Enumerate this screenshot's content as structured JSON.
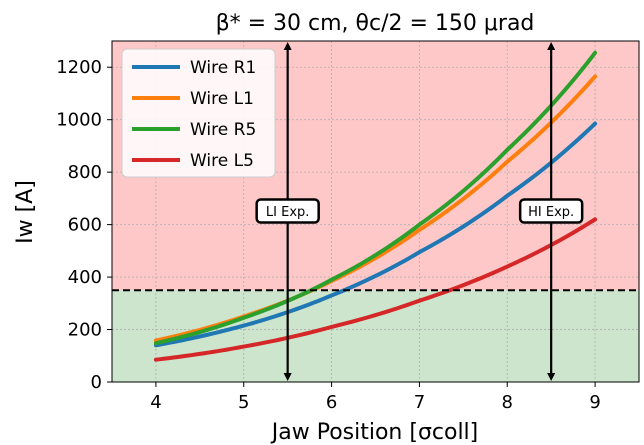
{
  "chart_data": {
    "type": "line",
    "title": "β* = 30 cm, θc/2 = 150 μrad",
    "xlabel": "Jaw Position [σcoll]",
    "ylabel": "Iw [A]",
    "xlim": [
      3.5,
      9.5
    ],
    "ylim": [
      0,
      1300
    ],
    "x_ticks": [
      4,
      5,
      6,
      7,
      8,
      9
    ],
    "y_ticks": [
      0,
      200,
      400,
      600,
      800,
      1000,
      1200
    ],
    "grid": true,
    "legend_position": "top-left",
    "x": [
      4,
      5,
      6,
      7,
      8,
      9
    ],
    "series": [
      {
        "name": "Wire R1",
        "color": "#1f77b4",
        "values": [
          140,
          215,
          330,
          495,
          710,
          985
        ]
      },
      {
        "name": "Wire L1",
        "color": "#ff7f0e",
        "values": [
          158,
          250,
          385,
          580,
          840,
          1165
        ]
      },
      {
        "name": "Wire R5",
        "color": "#2ca02c",
        "values": [
          148,
          245,
          390,
          600,
          885,
          1255
        ]
      },
      {
        "name": "Wire L5",
        "color": "#d62728",
        "values": [
          85,
          135,
          210,
          310,
          440,
          620
        ]
      }
    ],
    "threshold": {
      "y": 350,
      "style": "dashed",
      "color": "#000000"
    },
    "regions": {
      "above_color": "#ffc8c8",
      "below_color": "#cce5cc"
    },
    "annotations": [
      {
        "label": "LI Exp.",
        "x": 5.5
      },
      {
        "label": "HI Exp.",
        "x": 8.5
      }
    ]
  }
}
